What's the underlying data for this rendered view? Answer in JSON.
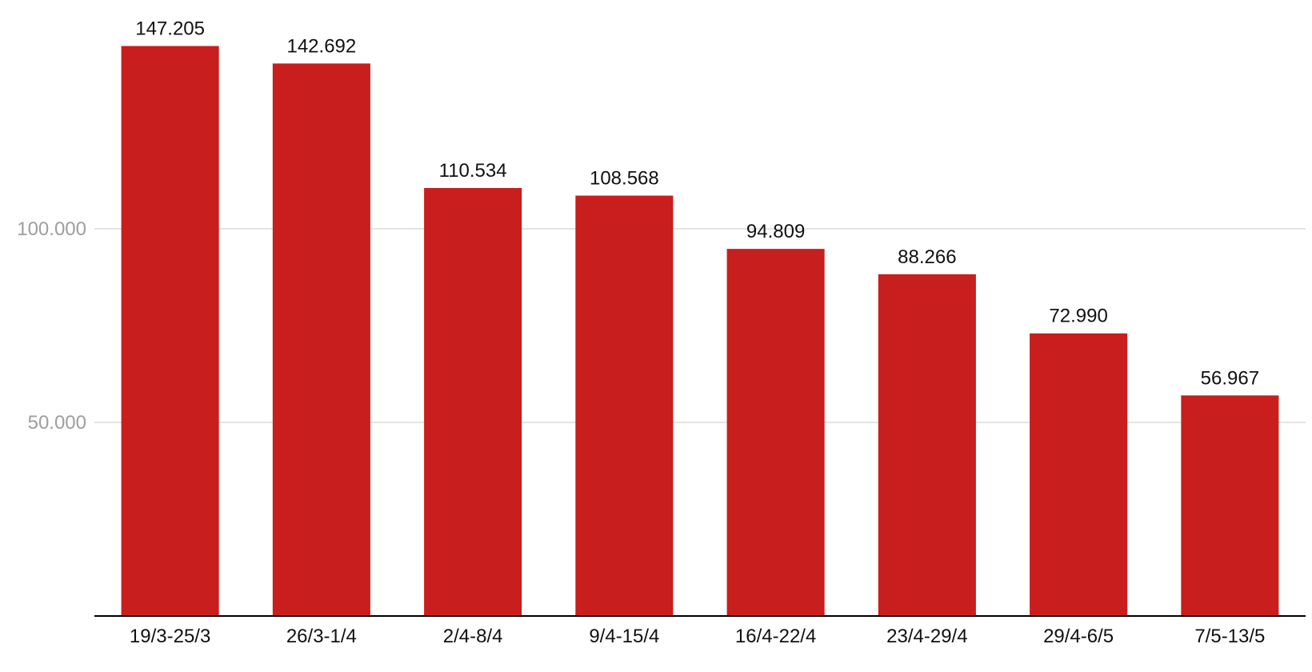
{
  "chart_data": {
    "type": "bar",
    "categories": [
      "19/3-25/3",
      "26/3-1/4",
      "2/4-8/4",
      "9/4-15/4",
      "16/4-22/4",
      "23/4-29/4",
      "29/4-6/5",
      "7/5-13/5"
    ],
    "values": [
      147205,
      142692,
      110534,
      108568,
      94809,
      88266,
      72990,
      56967
    ],
    "value_labels": [
      "147.205",
      "142.692",
      "110.534",
      "108.568",
      "94.809",
      "88.266",
      "72.990",
      "56.967"
    ],
    "title": "",
    "xlabel": "",
    "ylabel": "",
    "ylim": [
      0,
      160000
    ],
    "yticks": [
      50000,
      100000
    ],
    "ytick_labels": [
      "50.000",
      "100.000"
    ],
    "grid": true,
    "legend": "none",
    "bar_color": "#c81e1e"
  }
}
